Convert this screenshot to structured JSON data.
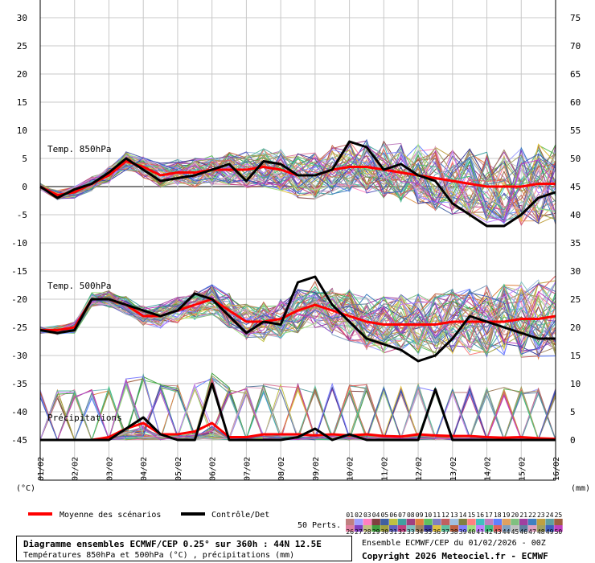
{
  "chart_data": {
    "type": "line",
    "title": "Diagramme ensembles ECMWF/CEP 0.25° sur 360h : 44N 12.5E",
    "subtitle": "Températures 850hPa et 500hPa (°C) , précipitations (mm)",
    "credits": "Ensemble ECMWF/CEP du 01/02/2026 - 00Z",
    "copyright": "Copyright 2026 Meteociel.fr - ECMWF",
    "left_unit": "(°C)",
    "right_unit": "(mm)",
    "left_ticks": [
      "30",
      "25",
      "20",
      "15",
      "10",
      "5",
      "0",
      "-5",
      "-10",
      "-15",
      "-20",
      "-25",
      "-30",
      "-35",
      "-40",
      "-45"
    ],
    "right_ticks": [
      "75",
      "70",
      "65",
      "60",
      "55",
      "50",
      "45",
      "40",
      "35",
      "30",
      "25",
      "20",
      "15",
      "10",
      "5",
      "0"
    ],
    "x_ticks": [
      "01/02",
      "02/02",
      "03/02",
      "04/02",
      "05/02",
      "06/02",
      "07/02",
      "08/02",
      "09/02",
      "10/02",
      "11/02",
      "12/02",
      "13/02",
      "14/02",
      "15/02",
      "16/02"
    ],
    "ylim_left": [
      -45,
      30
    ],
    "panel_labels": [
      "Temp. 850hPa",
      "Temp. 500hPa",
      "Précipitations"
    ],
    "legend": {
      "mean": "Moyenne des scénarios",
      "control": "Contrôle/Det",
      "perts": "50 Perts.",
      "pert_numbers_row1": [
        "01",
        "02",
        "03",
        "04",
        "05",
        "06",
        "07",
        "08",
        "09",
        "10",
        "11",
        "12",
        "13",
        "14",
        "15",
        "16",
        "17",
        "18",
        "19",
        "20",
        "21",
        "22",
        "23",
        "24",
        "25"
      ],
      "pert_numbers_row2": [
        "26",
        "27",
        "28",
        "29",
        "30",
        "31",
        "32",
        "33",
        "34",
        "35",
        "36",
        "37",
        "38",
        "39",
        "40",
        "41",
        "42",
        "43",
        "44",
        "45",
        "46",
        "47",
        "48",
        "49",
        "50"
      ],
      "pert_colors_row1": [
        "#c08080",
        "#a0a0ff",
        "#ff80c0",
        "#804040",
        "#4060a0",
        "#c0c040",
        "#40a0a0",
        "#a04080",
        "#e08040",
        "#60c060",
        "#8080c0",
        "#c06060",
        "#a0c0e0",
        "#808040",
        "#ff8080",
        "#40c0c0",
        "#c080c0",
        "#6080ff",
        "#e0a060",
        "#80c080",
        "#a040a0",
        "#4080c0",
        "#c0a040",
        "#60a0a0",
        "#a06040"
      ],
      "pert_colors_row2": [
        "#e080a0",
        "#8040c0",
        "#c0c080",
        "#40a040",
        "#a0a040",
        "#6060c0",
        "#c04080",
        "#80c0c0",
        "#a08060",
        "#4040a0",
        "#e0c040",
        "#60c0a0",
        "#c06040",
        "#8080ff",
        "#a0e080",
        "#c080ff",
        "#40c080",
        "#e06060",
        "#80a0c0",
        "#c0c0c0",
        "#6080a0",
        "#e0a0c0",
        "#a0a060",
        "#4060c0",
        "#c040c0"
      ],
      "mean_color": "#ff0000",
      "control_color": "#000000"
    },
    "series": [
      {
        "name": "Moyenne des scénarios",
        "panel": "Temp. 850hPa",
        "x": [
          0,
          0.5,
          1,
          1.5,
          2,
          2.5,
          3,
          3.5,
          4,
          4.5,
          5,
          5.5,
          6,
          6.5,
          7,
          7.5,
          8,
          8.5,
          9,
          9.5,
          10,
          10.5,
          11,
          11.5,
          12,
          12.5,
          13,
          13.5,
          14,
          14.5,
          15
        ],
        "values": [
          0,
          -1.5,
          -1,
          0.5,
          2,
          4.5,
          3.5,
          2,
          2.5,
          2.5,
          3,
          3,
          3,
          3.5,
          3,
          2,
          2,
          3,
          3.5,
          3.5,
          3,
          2.5,
          2,
          1.5,
          1,
          0.5,
          0,
          0,
          0,
          0.5,
          0.5
        ]
      },
      {
        "name": "Contrôle/Det",
        "panel": "Temp. 850hPa",
        "x": [
          0,
          0.5,
          1,
          1.5,
          2,
          2.5,
          3,
          3.5,
          4,
          4.5,
          5,
          5.5,
          6,
          6.5,
          7,
          7.5,
          8,
          8.5,
          9,
          9.5,
          10,
          10.5,
          11,
          11.5,
          12,
          12.5,
          13,
          13.5,
          14,
          14.5,
          15
        ],
        "values": [
          0,
          -2,
          -0.5,
          0.5,
          2.5,
          5,
          3,
          1,
          1.5,
          2,
          3,
          4,
          1,
          4.5,
          4,
          2,
          2,
          3,
          8,
          7,
          3,
          4,
          2,
          1,
          -3,
          -5,
          -7,
          -7,
          -5,
          -2,
          -1
        ]
      },
      {
        "name": "Moyenne des scénarios",
        "panel": "Temp. 500hPa",
        "x": [
          0,
          0.5,
          1,
          1.5,
          2,
          2.5,
          3,
          3.5,
          4,
          4.5,
          5,
          5.5,
          6,
          6.5,
          7,
          7.5,
          8,
          8.5,
          9,
          9.5,
          10,
          10.5,
          11,
          11.5,
          12,
          12.5,
          13,
          13.5,
          14,
          14.5,
          15
        ],
        "values": [
          -25.5,
          -25.5,
          -25,
          -20,
          -20,
          -21,
          -23,
          -23,
          -22,
          -21,
          -20,
          -22,
          -24,
          -24,
          -23.5,
          -22,
          -21,
          -22,
          -23,
          -24,
          -24.5,
          -24.5,
          -24.5,
          -24.5,
          -24,
          -24,
          -24,
          -24,
          -23.5,
          -23.5,
          -23
        ]
      },
      {
        "name": "Contrôle/Det",
        "panel": "Temp. 500hPa",
        "x": [
          0,
          0.5,
          1,
          1.5,
          2,
          2.5,
          3,
          3.5,
          4,
          4.5,
          5,
          5.5,
          6,
          6.5,
          7,
          7.5,
          8,
          8.5,
          9,
          9.5,
          10,
          10.5,
          11,
          11.5,
          12,
          12.5,
          13,
          13.5,
          14,
          14.5,
          15
        ],
        "values": [
          -25.5,
          -26,
          -25.5,
          -20,
          -20,
          -21,
          -22,
          -23,
          -22,
          -19,
          -20,
          -23,
          -26,
          -24,
          -24.5,
          -17,
          -16,
          -21,
          -24,
          -27,
          -28,
          -29,
          -31,
          -30,
          -27,
          -23,
          -24,
          -25,
          -26,
          -27,
          -27
        ]
      },
      {
        "name": "Moyenne des scénarios",
        "panel": "Précipitations",
        "x": [
          0,
          0.5,
          1,
          1.5,
          2,
          2.5,
          3,
          3.5,
          4,
          4.5,
          5,
          5.5,
          6,
          6.5,
          7,
          7.5,
          8,
          8.5,
          9,
          9.5,
          10,
          10.5,
          11,
          11.5,
          12,
          12.5,
          13,
          13.5,
          14,
          14.5,
          15
        ],
        "values": [
          0,
          0,
          0,
          0,
          0.5,
          2,
          3,
          1,
          1,
          1.5,
          3,
          0.5,
          0.5,
          1,
          1,
          1,
          0.8,
          1,
          0.8,
          1,
          0.7,
          0.6,
          1,
          0.8,
          0.7,
          0.7,
          0.5,
          0.4,
          0.5,
          0.3,
          0.2
        ]
      },
      {
        "name": "Contrôle/Det",
        "panel": "Précipitations",
        "x": [
          0,
          0.5,
          1,
          1.5,
          2,
          2.5,
          3,
          3.5,
          4,
          4.5,
          5,
          5.5,
          6,
          6.5,
          7,
          7.5,
          8,
          8.5,
          9,
          9.5,
          10,
          10.5,
          11,
          11.5,
          12,
          12.5,
          13,
          13.5,
          14,
          14.5,
          15
        ],
        "values": [
          0,
          0,
          0,
          0,
          0,
          2,
          4,
          1,
          0,
          0,
          10,
          0,
          0,
          0,
          0,
          0.5,
          2,
          0,
          1,
          0,
          0,
          0,
          0,
          9,
          0,
          0,
          0,
          0,
          0,
          0,
          0
        ]
      }
    ]
  }
}
